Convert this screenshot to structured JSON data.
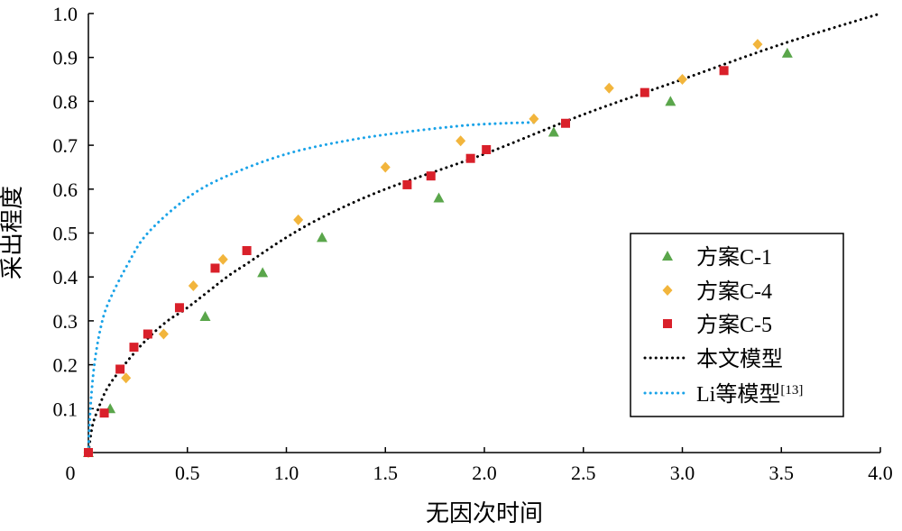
{
  "chart_data": {
    "type": "scatter",
    "xlabel": "无因次时间",
    "ylabel": "采出程度",
    "xlim": [
      0,
      4.0
    ],
    "ylim": [
      0,
      1.0
    ],
    "x_ticks": [
      "0",
      "0.5",
      "1.0",
      "1.5",
      "2.0",
      "2.5",
      "3.0",
      "3.5",
      "4.0"
    ],
    "y_ticks": [
      "0.1",
      "0.2",
      "0.3",
      "0.4",
      "0.5",
      "0.6",
      "0.7",
      "0.8",
      "0.9",
      "1.0"
    ],
    "legend_position": "right",
    "series": [
      {
        "name": "方案C-1",
        "marker": "triangle",
        "color": "#5aa64b",
        "points": [
          [
            0,
            0
          ],
          [
            0.11,
            0.1
          ],
          [
            0.59,
            0.31
          ],
          [
            0.88,
            0.41
          ],
          [
            1.18,
            0.49
          ],
          [
            1.77,
            0.58
          ],
          [
            2.35,
            0.73
          ],
          [
            2.94,
            0.8
          ],
          [
            3.53,
            0.91
          ]
        ]
      },
      {
        "name": "方案C-4",
        "marker": "diamond",
        "color": "#f2b53c",
        "points": [
          [
            0,
            0
          ],
          [
            0.19,
            0.17
          ],
          [
            0.38,
            0.27
          ],
          [
            0.53,
            0.38
          ],
          [
            0.68,
            0.44
          ],
          [
            1.06,
            0.53
          ],
          [
            1.5,
            0.65
          ],
          [
            1.88,
            0.71
          ],
          [
            2.25,
            0.76
          ],
          [
            2.63,
            0.83
          ],
          [
            3.0,
            0.85
          ],
          [
            3.38,
            0.93
          ]
        ]
      },
      {
        "name": "方案C-5",
        "marker": "square",
        "color": "#d9202a",
        "points": [
          [
            0,
            0
          ],
          [
            0.08,
            0.09
          ],
          [
            0.16,
            0.19
          ],
          [
            0.23,
            0.24
          ],
          [
            0.3,
            0.27
          ],
          [
            0.46,
            0.33
          ],
          [
            0.64,
            0.42
          ],
          [
            0.8,
            0.46
          ],
          [
            1.61,
            0.61
          ],
          [
            1.73,
            0.63
          ],
          [
            1.93,
            0.67
          ],
          [
            2.01,
            0.69
          ],
          [
            2.41,
            0.75
          ],
          [
            2.81,
            0.82
          ],
          [
            3.21,
            0.87
          ]
        ]
      },
      {
        "name": "本文模型",
        "line": "dotted",
        "color": "#000000",
        "points": [
          [
            0,
            0
          ],
          [
            0.02,
            0.06
          ],
          [
            0.05,
            0.1
          ],
          [
            0.1,
            0.15
          ],
          [
            0.2,
            0.21
          ],
          [
            0.3,
            0.26
          ],
          [
            0.4,
            0.3
          ],
          [
            0.5,
            0.33
          ],
          [
            0.7,
            0.4
          ],
          [
            0.8,
            0.43
          ],
          [
            1.0,
            0.49
          ],
          [
            1.2,
            0.54
          ],
          [
            1.5,
            0.6
          ],
          [
            2.0,
            0.68
          ],
          [
            2.5,
            0.77
          ],
          [
            3.0,
            0.85
          ],
          [
            3.5,
            0.93
          ],
          [
            4.0,
            1.0
          ]
        ]
      },
      {
        "name": "Li等模型",
        "name_sup": "[13]",
        "line": "dotted",
        "color": "#1aa3e8",
        "points": [
          [
            0,
            0
          ],
          [
            0.01,
            0.1
          ],
          [
            0.03,
            0.2
          ],
          [
            0.06,
            0.28
          ],
          [
            0.1,
            0.34
          ],
          [
            0.2,
            0.43
          ],
          [
            0.3,
            0.5
          ],
          [
            0.5,
            0.58
          ],
          [
            0.7,
            0.63
          ],
          [
            1.0,
            0.68
          ],
          [
            1.3,
            0.71
          ],
          [
            1.6,
            0.73
          ],
          [
            1.9,
            0.745
          ],
          [
            2.1,
            0.75
          ],
          [
            2.25,
            0.752
          ]
        ]
      }
    ]
  }
}
